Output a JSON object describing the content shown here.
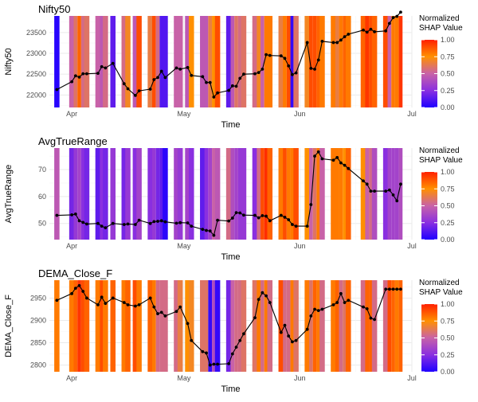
{
  "chart_data": [
    {
      "type": "line",
      "title": "Nifty50",
      "xlabel": "Time",
      "ylabel": "Nifty50",
      "xlim": [
        "2024-03-26",
        "2024-07-01"
      ],
      "ylim": [
        21700,
        23900
      ],
      "x_ticks": [
        "Apr",
        "May",
        "Jun",
        "Jul"
      ],
      "x_tick_dates": [
        "2024-04-01",
        "2024-05-01",
        "2024-06-01",
        "2024-07-01"
      ],
      "y_ticks": [
        22000,
        22500,
        23000,
        23500
      ],
      "series": [
        {
          "x": [
            "2024-03-28",
            "2024-04-01",
            "2024-04-02",
            "2024-04-03",
            "2024-04-04",
            "2024-04-05",
            "2024-04-08",
            "2024-04-09",
            "2024-04-10",
            "2024-04-12",
            "2024-04-15",
            "2024-04-16",
            "2024-04-18",
            "2024-04-19",
            "2024-04-22",
            "2024-04-23",
            "2024-04-24",
            "2024-04-25",
            "2024-04-26",
            "2024-04-29",
            "2024-04-30",
            "2024-05-02",
            "2024-05-03",
            "2024-05-06",
            "2024-05-07",
            "2024-05-08",
            "2024-05-09",
            "2024-05-10",
            "2024-05-13",
            "2024-05-14",
            "2024-05-15",
            "2024-05-16",
            "2024-05-17",
            "2024-05-20",
            "2024-05-21",
            "2024-05-22",
            "2024-05-23",
            "2024-05-24",
            "2024-05-27",
            "2024-05-28",
            "2024-05-29",
            "2024-05-30",
            "2024-05-31",
            "2024-06-03",
            "2024-06-04",
            "2024-06-05",
            "2024-06-06",
            "2024-06-07",
            "2024-06-10",
            "2024-06-11",
            "2024-06-12",
            "2024-06-13",
            "2024-06-14",
            "2024-06-18",
            "2024-06-19",
            "2024-06-20",
            "2024-06-21",
            "2024-06-24",
            "2024-06-25",
            "2024-06-26",
            "2024-06-27",
            "2024-06-28"
          ],
          "y": [
            22130,
            22320,
            22460,
            22430,
            22510,
            22510,
            22520,
            22680,
            22650,
            22760,
            22270,
            22150,
            21990,
            22100,
            22140,
            22370,
            22420,
            22570,
            22420,
            22650,
            22620,
            22660,
            22470,
            22440,
            22300,
            22300,
            21950,
            22050,
            22110,
            22220,
            22210,
            22400,
            22500,
            22510,
            22540,
            22620,
            22970,
            22950,
            22940,
            22880,
            22700,
            22490,
            22530,
            23260,
            22640,
            22620,
            22840,
            23290,
            23260,
            23260,
            23320,
            23400,
            23460,
            23560,
            23510,
            23580,
            23520,
            23540,
            23720,
            23860,
            23890,
            23990
          ]
        }
      ],
      "legend": {
        "title": "Normalized\nSHAP Value",
        "labels": [
          "0.00",
          "0.25",
          "0.50",
          "0.75",
          "1.00"
        ]
      },
      "shap_bands": [
        0.02,
        0.5,
        0.6,
        0.85,
        0.55,
        0.6,
        0.5,
        0.45,
        0.55,
        0.15,
        0.55,
        0.7,
        0.45,
        0.9,
        0.65,
        0.9,
        0.55,
        0.12,
        0.12,
        0.5,
        0.5,
        0.45,
        0.75,
        0.45,
        0.45,
        0.65,
        0.75,
        0.9,
        0.15,
        0.45,
        0.6,
        0.55,
        0.6,
        0.55,
        0.7,
        0.5,
        0.8,
        0.8,
        0.65,
        0.8,
        0.9,
        0.05,
        0.6,
        0.7,
        0.9,
        0.9,
        0.85,
        0.8,
        0.8,
        0.65,
        0.8,
        0.85,
        0.8,
        0.85,
        0.95,
        0.9,
        0.85,
        0.9,
        0.5,
        0.8,
        0.8,
        0.95
      ],
      "grid": true
    },
    {
      "type": "line",
      "title": "AvgTrueRange",
      "xlabel": "Time",
      "ylabel": "AvgTrueRange",
      "xlim": [
        "2024-03-26",
        "2024-07-01"
      ],
      "ylim": [
        44,
        78
      ],
      "x_ticks": [
        "Apr",
        "May",
        "Jun",
        "Jul"
      ],
      "x_tick_dates": [
        "2024-04-01",
        "2024-05-01",
        "2024-06-01",
        "2024-07-01"
      ],
      "y_ticks": [
        50,
        60,
        70
      ],
      "series": [
        {
          "x": [
            "2024-03-28",
            "2024-04-01",
            "2024-04-02",
            "2024-04-03",
            "2024-04-04",
            "2024-04-05",
            "2024-04-08",
            "2024-04-09",
            "2024-04-10",
            "2024-04-12",
            "2024-04-15",
            "2024-04-16",
            "2024-04-18",
            "2024-04-19",
            "2024-04-22",
            "2024-04-23",
            "2024-04-24",
            "2024-04-25",
            "2024-04-26",
            "2024-04-29",
            "2024-04-30",
            "2024-05-02",
            "2024-05-03",
            "2024-05-06",
            "2024-05-07",
            "2024-05-08",
            "2024-05-09",
            "2024-05-10",
            "2024-05-13",
            "2024-05-14",
            "2024-05-15",
            "2024-05-16",
            "2024-05-17",
            "2024-05-20",
            "2024-05-21",
            "2024-05-22",
            "2024-05-23",
            "2024-05-24",
            "2024-05-27",
            "2024-05-28",
            "2024-05-29",
            "2024-05-30",
            "2024-05-31",
            "2024-06-03",
            "2024-06-04",
            "2024-06-05",
            "2024-06-06",
            "2024-06-07",
            "2024-06-10",
            "2024-06-11",
            "2024-06-12",
            "2024-06-13",
            "2024-06-14",
            "2024-06-18",
            "2024-06-19",
            "2024-06-20",
            "2024-06-21",
            "2024-06-24",
            "2024-06-25",
            "2024-06-26",
            "2024-06-27",
            "2024-06-28"
          ],
          "y": [
            53.0,
            53.2,
            53.5,
            51.0,
            50.4,
            49.8,
            50.0,
            49.0,
            48.4,
            50.0,
            49.6,
            49.8,
            49.6,
            51.2,
            50.0,
            50.7,
            50.8,
            51.0,
            50.6,
            50.1,
            50.3,
            50.2,
            49.0,
            47.8,
            47.4,
            47.2,
            45.6,
            51.2,
            50.9,
            52.0,
            54.0,
            53.9,
            53.1,
            53.0,
            52.1,
            52.9,
            52.7,
            51.0,
            53.0,
            52.3,
            51.4,
            49.6,
            49.0,
            49.0,
            57.0,
            75.0,
            76.6,
            74.0,
            73.5,
            74.5,
            72.5,
            71.6,
            70.4,
            65.8,
            64.6,
            62.0,
            62.0,
            62.0,
            62.4,
            60.6,
            58.4,
            64.6
          ]
        }
      ],
      "legend": {
        "title": "Normalized\nSHAP Value",
        "labels": [
          "0.00",
          "0.25",
          "0.50",
          "0.75",
          "1.00"
        ]
      },
      "shap_bands": [
        0.45,
        0.2,
        0.3,
        0.35,
        0.25,
        0.2,
        0.15,
        0.25,
        0.2,
        0.3,
        0.2,
        0.3,
        0.25,
        0.35,
        0.25,
        0.3,
        0.2,
        0.15,
        0.03,
        0.35,
        0.3,
        0.35,
        0.25,
        0.15,
        0.25,
        0.35,
        0.5,
        0.45,
        0.55,
        0.4,
        0.35,
        0.3,
        0.3,
        0.25,
        0.55,
        0.9,
        0.97,
        0.85,
        0.8,
        0.9,
        0.8,
        0.8,
        0.9,
        0.75,
        0.5,
        0.6,
        0.8,
        0.5,
        0.8,
        0.8,
        0.8,
        0.75,
        0.85,
        0.75,
        0.5,
        0.55,
        0.4,
        0.25,
        0.35,
        0.35,
        0.35,
        0.4
      ],
      "grid": true
    },
    {
      "type": "line",
      "title": "DEMA_Close_F",
      "xlabel": "Time",
      "ylabel": "DEMA_Close_F",
      "xlim": [
        "2024-03-26",
        "2024-07-01"
      ],
      "ylim": [
        2785,
        2990
      ],
      "x_ticks": [
        "Apr",
        "May",
        "Jun",
        "Jul"
      ],
      "x_tick_dates": [
        "2024-04-01",
        "2024-05-01",
        "2024-06-01",
        "2024-07-01"
      ],
      "y_ticks": [
        2800,
        2850,
        2900,
        2950
      ],
      "series": [
        {
          "x": [
            "2024-03-28",
            "2024-04-01",
            "2024-04-02",
            "2024-04-03",
            "2024-04-04",
            "2024-04-05",
            "2024-04-08",
            "2024-04-09",
            "2024-04-10",
            "2024-04-12",
            "2024-04-15",
            "2024-04-16",
            "2024-04-18",
            "2024-04-19",
            "2024-04-22",
            "2024-04-23",
            "2024-04-24",
            "2024-04-25",
            "2024-04-26",
            "2024-04-29",
            "2024-04-30",
            "2024-05-02",
            "2024-05-03",
            "2024-05-06",
            "2024-05-07",
            "2024-05-08",
            "2024-05-09",
            "2024-05-10",
            "2024-05-13",
            "2024-05-14",
            "2024-05-15",
            "2024-05-16",
            "2024-05-17",
            "2024-05-20",
            "2024-05-21",
            "2024-05-22",
            "2024-05-23",
            "2024-05-24",
            "2024-05-27",
            "2024-05-28",
            "2024-05-29",
            "2024-05-30",
            "2024-05-31",
            "2024-06-03",
            "2024-06-04",
            "2024-06-05",
            "2024-06-06",
            "2024-06-07",
            "2024-06-10",
            "2024-06-11",
            "2024-06-12",
            "2024-06-13",
            "2024-06-14",
            "2024-06-18",
            "2024-06-19",
            "2024-06-20",
            "2024-06-21",
            "2024-06-24",
            "2024-06-25",
            "2024-06-26",
            "2024-06-27",
            "2024-06-28"
          ],
          "y": [
            2945,
            2960,
            2972,
            2978,
            2965,
            2950,
            2935,
            2952,
            2938,
            2950,
            2940,
            2935,
            2932,
            2935,
            2950,
            2930,
            2915,
            2918,
            2910,
            2920,
            2930,
            2893,
            2855,
            2830,
            2827,
            2800,
            2802,
            2802,
            2803,
            2825,
            2840,
            2855,
            2870,
            2906,
            2947,
            2962,
            2955,
            2940,
            2873,
            2889,
            2865,
            2852,
            2855,
            2880,
            2910,
            2925,
            2922,
            2925,
            2935,
            2940,
            2960,
            2940,
            2945,
            2930,
            2926,
            2905,
            2902,
            2970,
            2970,
            2970,
            2970,
            2970
          ],
          "note_hidden": false
        }
      ],
      "legend": {
        "title": "Normalized\nSHAP Value",
        "labels": [
          "0.00",
          "0.25",
          "0.50",
          "0.75",
          "1.00"
        ]
      },
      "shap_bands": [
        0.8,
        0.8,
        0.85,
        0.95,
        0.9,
        0.85,
        0.8,
        0.9,
        0.8,
        0.85,
        0.8,
        0.85,
        0.9,
        0.8,
        0.85,
        0.8,
        0.55,
        0.55,
        0.55,
        0.55,
        0.65,
        0.75,
        0.7,
        0.6,
        0.6,
        0.05,
        0.4,
        0.05,
        0.2,
        0.5,
        0.55,
        0.55,
        0.6,
        0.6,
        0.8,
        0.55,
        0.8,
        0.55,
        0.9,
        0.55,
        0.55,
        0.8,
        0.6,
        0.8,
        0.6,
        0.85,
        0.8,
        0.55,
        0.8,
        0.85,
        0.55,
        0.6,
        0.85,
        0.55,
        0.85,
        0.85,
        0.55,
        0.55,
        0.9,
        0.85,
        0.8,
        0.85
      ],
      "grid": true
    }
  ],
  "colors": {
    "gradient_low": "#1f00ff",
    "gradient_mid": "#c862a8",
    "gradient_high": "#ff2000",
    "line": "#000000",
    "grid_major": "#ebebeb",
    "grid_minor": "#f5f5f5"
  }
}
